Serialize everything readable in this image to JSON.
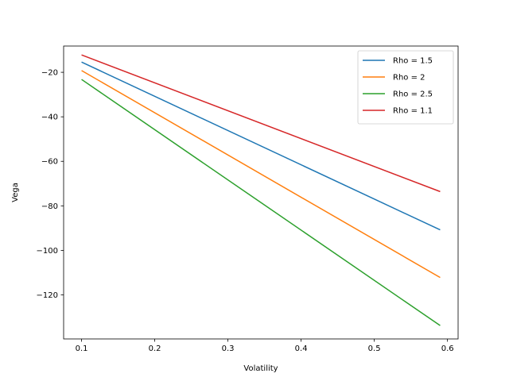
{
  "chart_data": {
    "type": "line",
    "title": "",
    "xlabel": "Volatility",
    "ylabel": "Vega",
    "xlim": [
      0.0755,
      0.6145
    ],
    "ylim": [
      -139.8,
      -8.2
    ],
    "xticks": [
      0.1,
      0.2,
      0.3,
      0.4,
      0.5,
      0.6
    ],
    "xtick_labels": [
      "0.1",
      "0.2",
      "0.3",
      "0.4",
      "0.5",
      "0.6"
    ],
    "yticks": [
      -120,
      -100,
      -80,
      -60,
      -40,
      -20
    ],
    "ytick_labels": [
      "−120",
      "−100",
      "−80",
      "−60",
      "−40",
      "−20"
    ],
    "grid": false,
    "legend_position": "top-right",
    "x": [
      0.1,
      0.59
    ],
    "series": [
      {
        "name": "Rho = 1.5",
        "color": "#1f77b4",
        "values": [
          -15.4,
          -90.8
        ]
      },
      {
        "name": "Rho = 2",
        "color": "#ff7f0e",
        "values": [
          -19.2,
          -112.2
        ]
      },
      {
        "name": "Rho = 2.5",
        "color": "#2ca02c",
        "values": [
          -23.2,
          -133.8
        ]
      },
      {
        "name": "Rho = 1.1",
        "color": "#d62728",
        "values": [
          -12.2,
          -73.6
        ]
      }
    ]
  }
}
